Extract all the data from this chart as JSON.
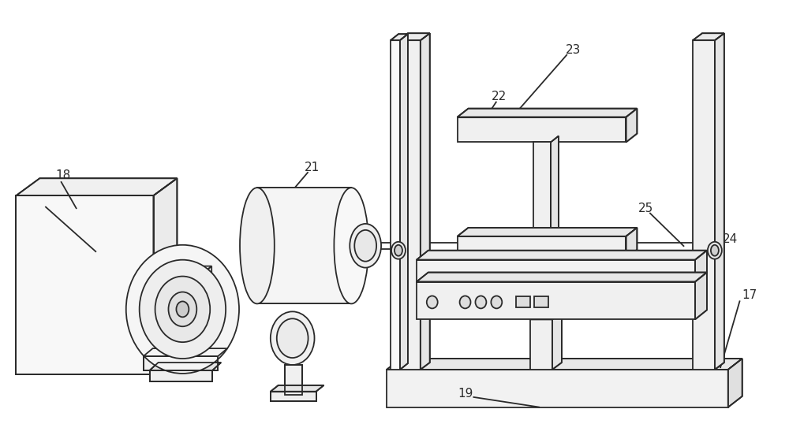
{
  "bg_color": "#ffffff",
  "line_color": "#2a2a2a",
  "lw": 1.3,
  "figsize": [
    10.0,
    5.38
  ],
  "dpi": 100
}
